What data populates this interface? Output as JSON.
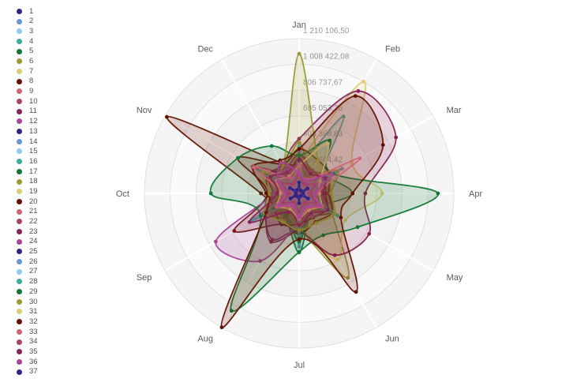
{
  "legend": {
    "items": [
      {
        "label": "1",
        "color": "#332288"
      },
      {
        "label": "2",
        "color": "#6699CC"
      },
      {
        "label": "3",
        "color": "#88CCEE"
      },
      {
        "label": "4",
        "color": "#44AA99"
      },
      {
        "label": "5",
        "color": "#117733"
      },
      {
        "label": "6",
        "color": "#999933"
      },
      {
        "label": "7",
        "color": "#DDCC77"
      },
      {
        "label": "8",
        "color": "#661100"
      },
      {
        "label": "9",
        "color": "#CC6677"
      },
      {
        "label": "10",
        "color": "#AA4466"
      },
      {
        "label": "11",
        "color": "#882255"
      },
      {
        "label": "12",
        "color": "#AA4499"
      },
      {
        "label": "13",
        "color": "#332288"
      },
      {
        "label": "14",
        "color": "#6699CC"
      },
      {
        "label": "15",
        "color": "#88CCEE"
      },
      {
        "label": "16",
        "color": "#44AA99"
      },
      {
        "label": "17",
        "color": "#117733"
      },
      {
        "label": "18",
        "color": "#999933"
      },
      {
        "label": "19",
        "color": "#DDCC77"
      },
      {
        "label": "20",
        "color": "#661100"
      },
      {
        "label": "21",
        "color": "#CC6677"
      },
      {
        "label": "22",
        "color": "#AA4466"
      },
      {
        "label": "23",
        "color": "#882255"
      },
      {
        "label": "24",
        "color": "#AA4499"
      },
      {
        "label": "25",
        "color": "#332288"
      },
      {
        "label": "26",
        "color": "#6699CC"
      },
      {
        "label": "27",
        "color": "#88CCEE"
      },
      {
        "label": "28",
        "color": "#44AA99"
      },
      {
        "label": "29",
        "color": "#117733"
      },
      {
        "label": "30",
        "color": "#999933"
      },
      {
        "label": "31",
        "color": "#DDCC77"
      },
      {
        "label": "32",
        "color": "#661100"
      },
      {
        "label": "33",
        "color": "#CC6677"
      },
      {
        "label": "34",
        "color": "#AA4466"
      },
      {
        "label": "35",
        "color": "#882255"
      },
      {
        "label": "36",
        "color": "#AA4499"
      },
      {
        "label": "37",
        "color": "#332288"
      }
    ]
  },
  "chart_data": {
    "type": "radar",
    "categories": [
      "Jan",
      "Feb",
      "Mar",
      "Apr",
      "May",
      "Jun",
      "Jul",
      "Aug",
      "Sep",
      "Oct",
      "Nov",
      "Dec"
    ],
    "axis": {
      "min": 0,
      "max": 1210106.5,
      "tick_step": 201684.42,
      "rings": 6,
      "start_angle_deg": 0,
      "direction": "clockwise",
      "grid": true,
      "ticks": [
        {
          "value": 201684.42,
          "label": "201 684,42"
        },
        {
          "value": 403368.83,
          "label": "403 368,83"
        },
        {
          "value": 605053.25,
          "label": "605 053,25"
        },
        {
          "value": 806737.67,
          "label": "806 737,67"
        },
        {
          "value": 1008422.08,
          "label": "1 008 422,08"
        },
        {
          "value": 1210106.5,
          "label": "1 210 106,50"
        }
      ]
    },
    "palette": [
      "#332288",
      "#6699CC",
      "#88CCEE",
      "#44AA99",
      "#117733",
      "#999933",
      "#DDCC77",
      "#661100",
      "#CC6677",
      "#AA4466",
      "#882255",
      "#AA4499"
    ],
    "legend_position": "left",
    "series": [
      {
        "name": "1",
        "color": "#332288",
        "values": [
          338000,
          52000,
          296000,
          58000,
          312000,
          48000,
          352000,
          55000,
          304000,
          50000,
          322000,
          60000
        ]
      },
      {
        "name": "2",
        "color": "#6699CC",
        "values": [
          258000,
          92000,
          388000,
          86000,
          278000,
          95000,
          418000,
          88000,
          298000,
          90000,
          368000,
          96000
        ]
      },
      {
        "name": "3",
        "color": "#88CCEE",
        "values": [
          188000,
          42000,
          162000,
          46000,
          172000,
          40000,
          178000,
          44000,
          168000,
          42000,
          182000,
          48000
        ]
      },
      {
        "name": "4",
        "color": "#44AA99",
        "values": [
          198000,
          695000,
          152000,
          118000,
          298000,
          138000,
          158000,
          128000,
          168000,
          108000,
          188000,
          122000
        ]
      },
      {
        "name": "5",
        "color": "#117733",
        "values": [
          298000,
          152000,
          248000,
          418000,
          198000,
          178000,
          462000,
          218000,
          278000,
          158000,
          238000,
          168000
        ]
      },
      {
        "name": "6",
        "color": "#999933",
        "values": [
          398000,
          198000,
          348000,
          248000,
          298000,
          763000,
          278000,
          228000,
          318000,
          208000,
          288000,
          238000
        ]
      },
      {
        "name": "7",
        "color": "#DDCC77",
        "values": [
          248000,
          1010000,
          478000,
          648000,
          418000,
          598000,
          248000,
          168000,
          208000,
          158000,
          228000,
          172000
        ]
      },
      {
        "name": "8",
        "color": "#661100",
        "values": [
          348000,
          298000,
          278000,
          238000,
          298000,
          258000,
          318000,
          278000,
          586000,
          248000,
          553000,
          268000
        ]
      },
      {
        "name": "9",
        "color": "#CC6677",
        "values": [
          258000,
          148000,
          218000,
          168000,
          278000,
          158000,
          238000,
          178000,
          298000,
          138000,
          398000,
          188000
        ]
      },
      {
        "name": "10",
        "color": "#AA4466",
        "values": [
          178000,
          98000,
          158000,
          118000,
          138000,
          108000,
          148000,
          92000,
          162000,
          102000,
          172000,
          112000
        ]
      },
      {
        "name": "11",
        "color": "#882255",
        "values": [
          428000,
          925000,
          875000,
          518000,
          632000,
          558000,
          298000,
          418000,
          308000,
          248000,
          288000,
          258000
        ]
      },
      {
        "name": "12",
        "color": "#AA4499",
        "values": [
          218000,
          88000,
          188000,
          96000,
          198000,
          84000,
          192000,
          92000,
          196000,
          88000,
          204000,
          98000
        ]
      },
      {
        "name": "13",
        "color": "#332288",
        "values": [
          205000,
          38000,
          185000,
          42000,
          195000,
          36000,
          190000,
          40000,
          188000,
          38000,
          198000,
          44000
        ]
      },
      {
        "name": "14",
        "color": "#6699CC",
        "values": [
          172000,
          64000,
          152000,
          68000,
          162000,
          60000,
          156000,
          66000,
          158000,
          62000,
          166000,
          70000
        ]
      },
      {
        "name": "15",
        "color": "#88CCEE",
        "values": [
          232000,
          78000,
          205000,
          84000,
          218000,
          74000,
          210000,
          80000,
          214000,
          76000,
          224000,
          86000
        ]
      },
      {
        "name": "16",
        "color": "#44AA99",
        "values": [
          268000,
          112000,
          238000,
          122000,
          252000,
          108000,
          244000,
          118000,
          248000,
          112000,
          258000,
          126000
        ]
      },
      {
        "name": "17",
        "color": "#117733",
        "values": [
          198000,
          148000,
          178000,
          158000,
          218000,
          168000,
          378000,
          198000,
          238000,
          152000,
          208000,
          162000
        ]
      },
      {
        "name": "18",
        "color": "#999933",
        "values": [
          298000,
          168000,
          258000,
          188000,
          278000,
          172000,
          268000,
          158000,
          288000,
          162000,
          278000,
          178000
        ]
      },
      {
        "name": "19",
        "color": "#DDCC77",
        "values": [
          148000,
          88000,
          128000,
          92000,
          138000,
          86000,
          132000,
          78000,
          136000,
          82000,
          142000,
          90000
        ]
      },
      {
        "name": "20",
        "color": "#661100",
        "values": [
          258000,
          198000,
          228000,
          208000,
          248000,
          218000,
          238000,
          278000,
          228000,
          298000,
          1195000,
          278000
        ]
      },
      {
        "name": "21",
        "color": "#CC6677",
        "values": [
          188000,
          108000,
          168000,
          118000,
          178000,
          112000,
          172000,
          98000,
          398000,
          102000,
          182000,
          118000
        ]
      },
      {
        "name": "22",
        "color": "#AA4466",
        "values": [
          138000,
          78000,
          118000,
          84000,
          128000,
          80000,
          122000,
          72000,
          126000,
          76000,
          132000,
          82000
        ]
      },
      {
        "name": "23",
        "color": "#882255",
        "values": [
          308000,
          208000,
          268000,
          228000,
          288000,
          212000,
          278000,
          438000,
          298000,
          202000,
          288000,
          218000
        ]
      },
      {
        "name": "24",
        "color": "#AA4499",
        "values": [
          218000,
          178000,
          198000,
          188000,
          238000,
          208000,
          228000,
          611000,
          753000,
          198000,
          258000,
          212000
        ]
      },
      {
        "name": "25",
        "color": "#332288",
        "values": [
          122000,
          30000,
          108000,
          34000,
          115000,
          28000,
          110000,
          32000,
          112000,
          30000,
          118000,
          36000
        ]
      },
      {
        "name": "26",
        "color": "#6699CC",
        "values": [
          142000,
          52000,
          126000,
          56000,
          134000,
          50000,
          128000,
          54000,
          130000,
          52000,
          138000,
          58000
        ]
      },
      {
        "name": "27",
        "color": "#88CCEE",
        "values": [
          98000,
          36000,
          86000,
          40000,
          92000,
          34000,
          88000,
          38000,
          90000,
          36000,
          95000,
          42000
        ]
      },
      {
        "name": "28",
        "color": "#44AA99",
        "values": [
          368000,
          98000,
          328000,
          108000,
          348000,
          94000,
          338000,
          104000,
          422000,
          98000,
          356000,
          112000
        ]
      },
      {
        "name": "29",
        "color": "#117733",
        "values": [
          298000,
          478000,
          308000,
          1086000,
          528000,
          378000,
          458000,
          1060000,
          348000,
          690000,
          553000,
          428000
        ]
      },
      {
        "name": "30",
        "color": "#999933",
        "values": [
          1092000,
          298000,
          278000,
          248000,
          318000,
          268000,
          288000,
          258000,
          308000,
          238000,
          328000,
          252000
        ]
      },
      {
        "name": "31",
        "color": "#DDCC77",
        "values": [
          218000,
          448000,
          188000,
          158000,
          198000,
          152000,
          192000,
          142000,
          196000,
          146000,
          202000,
          154000
        ]
      },
      {
        "name": "32",
        "color": "#661100",
        "values": [
          348000,
          880000,
          758000,
          418000,
          378000,
          890000,
          358000,
          1210106.5,
          298000,
          258000,
          418000,
          298000
        ]
      },
      {
        "name": "33",
        "color": "#CC6677",
        "values": [
          228000,
          128000,
          548000,
          138000,
          208000,
          132000,
          202000,
          118000,
          206000,
          122000,
          412000,
          138000
        ]
      },
      {
        "name": "34",
        "color": "#AA4466",
        "values": [
          158000,
          88000,
          138000,
          94000,
          148000,
          90000,
          142000,
          82000,
          146000,
          86000,
          152000,
          92000
        ]
      },
      {
        "name": "35",
        "color": "#882255",
        "values": [
          268000,
          178000,
          238000,
          188000,
          258000,
          182000,
          248000,
          168000,
          448000,
          172000,
          258000,
          188000
        ]
      },
      {
        "name": "36",
        "color": "#AA4499",
        "values": [
          158000,
          118000,
          298000,
          128000,
          188000,
          122000,
          182000,
          108000,
          186000,
          112000,
          192000,
          280000
        ]
      },
      {
        "name": "37",
        "color": "#332288",
        "values": [
          86000,
          26000,
          76000,
          30000,
          81000,
          24000,
          78000,
          28000,
          79000,
          26000,
          83000,
          32000
        ]
      }
    ],
    "styles": {
      "background": "#ffffff",
      "band_colors": [
        "#f5f5f5",
        "#fafafa",
        "#f3f3f3",
        "#f8f8f8",
        "#f1f1f1",
        "#f6f6f6"
      ],
      "ring_stroke": "#e0e0e0",
      "spoke_color": "#ffffff",
      "month_label_color": "#595959",
      "tick_label_color": "#8c8c8c",
      "fill_opacity": 0.18,
      "stroke_width": 1.8,
      "dot_radius": 2.4
    }
  }
}
